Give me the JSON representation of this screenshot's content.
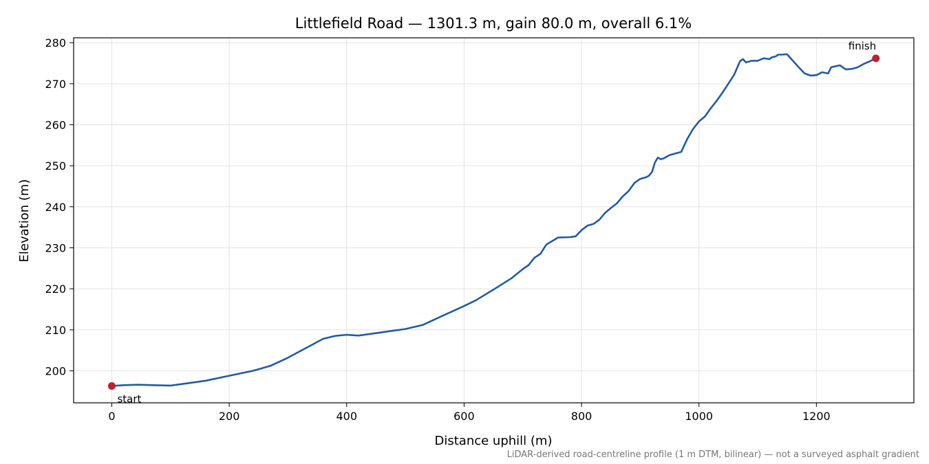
{
  "colors": {
    "line": "#1f5aa8",
    "marker": "#c0202f",
    "grid": "#e3e3e3",
    "frame": "#000000",
    "footnote": "#777777"
  },
  "chart_data": {
    "type": "line",
    "title": "Littlefield Road — 1301.3 m, gain 80.0 m, overall 6.1%",
    "xlabel": "Distance uphill (m)",
    "ylabel": "Elevation (m)",
    "xlim": [
      -65,
      1366
    ],
    "ylim": [
      192.2,
      281.2
    ],
    "xticks": [
      0,
      200,
      400,
      600,
      800,
      1000,
      1200
    ],
    "yticks": [
      200,
      210,
      220,
      230,
      240,
      250,
      260,
      270,
      280
    ],
    "grid": true,
    "series": [
      {
        "x": [
          0,
          20,
          45,
          70,
          100,
          130,
          160,
          200,
          240,
          270,
          300,
          330,
          360,
          380,
          400,
          420,
          440,
          470,
          500,
          530,
          560,
          600,
          620,
          650,
          680,
          700,
          710,
          720,
          730,
          740,
          760,
          780,
          790,
          800,
          810,
          820,
          830,
          840,
          850,
          860,
          870,
          880,
          890,
          900,
          910,
          915,
          920,
          925,
          930,
          935,
          940,
          950,
          960,
          965,
          970,
          975,
          980,
          990,
          1000,
          1010,
          1020,
          1030,
          1040,
          1050,
          1060,
          1070,
          1075,
          1080,
          1085,
          1090,
          1100,
          1110,
          1120,
          1125,
          1130,
          1135,
          1140,
          1150,
          1160,
          1170,
          1180,
          1190,
          1200,
          1210,
          1220,
          1225,
          1230,
          1240,
          1250,
          1260,
          1270,
          1280,
          1290,
          1301.3
        ],
        "y": [
          196.3,
          196.5,
          196.6,
          196.5,
          196.4,
          197.0,
          197.6,
          198.8,
          200.0,
          201.2,
          203.2,
          205.5,
          207.8,
          208.5,
          208.8,
          208.6,
          209.0,
          209.6,
          210.2,
          211.2,
          213.2,
          215.8,
          217.2,
          219.8,
          222.5,
          224.8,
          225.8,
          227.6,
          228.5,
          230.8,
          232.5,
          232.6,
          232.8,
          234.3,
          235.4,
          235.8,
          236.8,
          238.5,
          239.7,
          240.8,
          242.5,
          243.8,
          245.8,
          246.8,
          247.2,
          247.6,
          248.5,
          250.8,
          252.0,
          251.6,
          251.8,
          252.6,
          253.0,
          253.2,
          253.4,
          255.0,
          256.5,
          259.0,
          260.8,
          262.0,
          264.0,
          265.8,
          267.8,
          270.0,
          272.2,
          275.5,
          276.0,
          275.2,
          275.4,
          275.6,
          275.6,
          276.2,
          276.0,
          276.5,
          276.6,
          277.1,
          277.1,
          277.2,
          275.6,
          274.0,
          272.5,
          272.0,
          272.1,
          272.8,
          272.5,
          274.0,
          274.2,
          274.5,
          273.5,
          273.6,
          274.0,
          274.8,
          275.4,
          276.2
        ]
      }
    ],
    "annotations": [
      {
        "text": "start",
        "x": 0,
        "y": 196.3
      },
      {
        "text": "finish",
        "x": 1301.3,
        "y": 276.2
      }
    ],
    "footnote": "LiDAR-derived road-centreline profile (1 m DTM, bilinear) — not a surveyed asphalt gradient"
  }
}
